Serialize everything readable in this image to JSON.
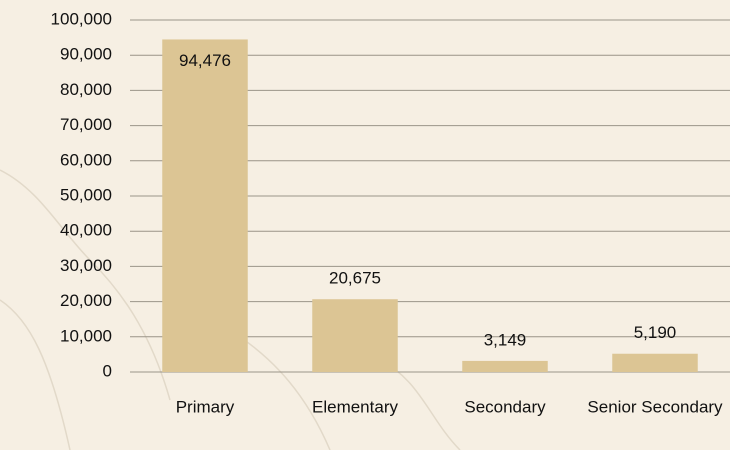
{
  "chart_data": {
    "type": "bar",
    "categories": [
      "Primary",
      "Elementary",
      "Secondary",
      "Senior Secondary"
    ],
    "values": [
      94476,
      20675,
      3149,
      5190
    ],
    "value_labels": [
      "94,476",
      "20,675",
      "3,149",
      "5,190"
    ],
    "color": "#dcc594",
    "ylim": [
      0,
      100000
    ],
    "yticks": [
      {
        "value": 0,
        "label": "0"
      },
      {
        "value": 10000,
        "label": "10,000"
      },
      {
        "value": 20000,
        "label": "20,000"
      },
      {
        "value": 30000,
        "label": "30,000"
      },
      {
        "value": 40000,
        "label": "40,000"
      },
      {
        "value": 50000,
        "label": "50,000"
      },
      {
        "value": 60000,
        "label": "60,000"
      },
      {
        "value": 70000,
        "label": "70,000"
      },
      {
        "value": 80000,
        "label": "80,000"
      },
      {
        "value": 90000,
        "label": "90,000"
      },
      {
        "value": 100000,
        "label": "100,000"
      }
    ],
    "grid": true
  }
}
